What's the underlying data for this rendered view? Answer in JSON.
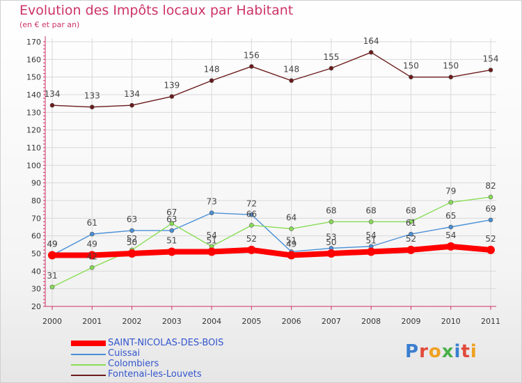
{
  "page": {
    "title": "Evolution des Impôts locaux par Habitant",
    "subtitle": "(en € et par an)",
    "logo": "Proxiti"
  },
  "chart_data": {
    "type": "line",
    "title": "Evolution des Impôts locaux par Habitant",
    "subtitle": "(en € et par an)",
    "xlabel": "",
    "ylabel": "",
    "ylim": [
      20,
      170
    ],
    "yticks": [
      20,
      30,
      40,
      50,
      60,
      70,
      80,
      90,
      100,
      110,
      120,
      130,
      140,
      150,
      160,
      170
    ],
    "categories": [
      "2000",
      "2001",
      "2002",
      "2003",
      "2004",
      "2005",
      "2006",
      "2007",
      "2008",
      "2009",
      "2010",
      "2011"
    ],
    "grid": true,
    "legend_position": "bottom-left",
    "series": [
      {
        "name": "Fontenai-les-Louvets",
        "color": "#6b1a1a",
        "values": [
          134,
          133,
          134,
          139,
          148,
          156,
          148,
          155,
          164,
          150,
          150,
          154
        ]
      },
      {
        "name": "Cuissai",
        "color": "#4a8fd6",
        "values": [
          49,
          61,
          63,
          63,
          73,
          72,
          51,
          53,
          54,
          61,
          65,
          69
        ]
      },
      {
        "name": "Colombiers",
        "color": "#88dd55",
        "values": [
          31,
          42,
          52,
          67,
          54,
          66,
          64,
          68,
          68,
          68,
          79,
          82
        ]
      },
      {
        "name": "SAINT-NICOLAS-DES-BOIS",
        "color": "#ff0000",
        "values": [
          49,
          49,
          50,
          51,
          51,
          52,
          49,
          50,
          51,
          52,
          54,
          52
        ]
      }
    ],
    "legend": [
      {
        "name": "SAINT-NICOLAS-DES-BOIS",
        "color": "#ff0000"
      },
      {
        "name": "Cuissai",
        "color": "#4a8fd6"
      },
      {
        "name": "Colombiers",
        "color": "#88dd55"
      },
      {
        "name": "Fontenai-les-Louvets",
        "color": "#6b1a1a"
      }
    ]
  }
}
